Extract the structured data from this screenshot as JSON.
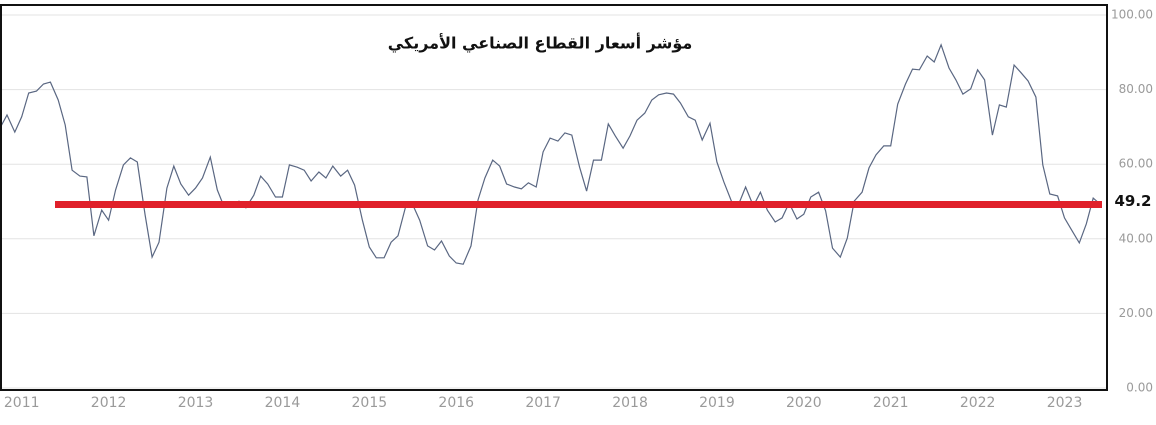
{
  "chart_data": {
    "type": "line",
    "title": "مؤشر أسعار القطاع الصناعي الأمريكي",
    "x": [
      2010.75,
      2010.83,
      2010.92,
      2011,
      2011.08,
      2011.17,
      2011.25,
      2011.33,
      2011.42,
      2011.5,
      2011.58,
      2011.67,
      2011.75,
      2011.83,
      2011.92,
      2012,
      2012.08,
      2012.17,
      2012.25,
      2012.33,
      2012.42,
      2012.5,
      2012.58,
      2012.67,
      2012.75,
      2012.83,
      2012.92,
      2013,
      2013.08,
      2013.17,
      2013.25,
      2013.33,
      2013.42,
      2013.5,
      2013.58,
      2013.67,
      2013.75,
      2013.83,
      2013.92,
      2014,
      2014.08,
      2014.17,
      2014.25,
      2014.33,
      2014.42,
      2014.5,
      2014.58,
      2014.67,
      2014.75,
      2014.83,
      2014.92,
      2015,
      2015.08,
      2015.17,
      2015.25,
      2015.33,
      2015.42,
      2015.5,
      2015.58,
      2015.67,
      2015.75,
      2015.83,
      2015.92,
      2016,
      2016.08,
      2016.17,
      2016.25,
      2016.33,
      2016.42,
      2016.5,
      2016.58,
      2016.67,
      2016.75,
      2016.83,
      2016.92,
      2017,
      2017.08,
      2017.17,
      2017.25,
      2017.33,
      2017.42,
      2017.5,
      2017.58,
      2017.67,
      2017.75,
      2017.83,
      2017.92,
      2018,
      2018.08,
      2018.17,
      2018.25,
      2018.33,
      2018.42,
      2018.5,
      2018.58,
      2018.67,
      2018.75,
      2018.83,
      2018.92,
      2019,
      2019.08,
      2019.17,
      2019.25,
      2019.33,
      2019.42,
      2019.5,
      2019.58,
      2019.67,
      2019.75,
      2019.83,
      2019.92,
      2020,
      2020.08,
      2020.17,
      2020.25,
      2020.33,
      2020.42,
      2020.5,
      2020.58,
      2020.67,
      2020.75,
      2020.83,
      2020.92,
      2021,
      2021.08,
      2021.17,
      2021.25,
      2021.33,
      2021.42,
      2021.5,
      2021.58,
      2021.67,
      2021.75,
      2021.83,
      2021.92,
      2022,
      2022.08,
      2022.17,
      2022.25,
      2022.33,
      2022.42,
      2022.5,
      2022.58,
      2022.67,
      2022.75,
      2022.83,
      2022.92,
      2023,
      2023.08,
      2023.17,
      2023.25,
      2023.33,
      2023.42
    ],
    "series": [
      {
        "color": "#5a6782",
        "values": [
          69.7,
          73.2,
          68.6,
          72.7,
          79.1,
          79.6,
          81.5,
          82.0,
          77.2,
          70.5,
          58.4,
          56.8,
          56.6,
          40.8,
          47.7,
          45.0,
          53.1,
          59.8,
          61.7,
          60.6,
          46.4,
          35.1,
          39.1,
          53.6,
          59.5,
          54.7,
          51.7,
          53.6,
          56.3,
          61.9,
          53.1,
          48.5,
          48.8,
          50.1,
          48.3,
          51.7,
          56.8,
          54.7,
          51.2,
          51.2,
          59.8,
          59.2,
          58.4,
          55.5,
          57.9,
          56.3,
          59.5,
          56.8,
          58.4,
          54.4,
          45.0,
          37.8,
          34.9,
          34.9,
          39.1,
          40.8,
          48.8,
          49.1,
          45.0,
          38.1,
          37.0,
          39.4,
          35.4,
          33.5,
          33.2,
          38.1,
          50.4,
          56.3,
          61.1,
          59.5,
          54.7,
          53.9,
          53.4,
          55.0,
          53.9,
          63.3,
          67.0,
          66.2,
          68.4,
          67.8,
          59.2,
          52.8,
          61.1,
          61.1,
          70.8,
          67.6,
          64.3,
          67.6,
          71.8,
          73.7,
          77.2,
          78.6,
          79.1,
          78.8,
          76.4,
          72.7,
          71.8,
          66.5,
          71.0,
          60.6,
          55.2,
          49.9,
          49.3,
          53.9,
          48.8,
          52.5,
          47.7,
          44.5,
          45.6,
          49.6,
          45.3,
          46.6,
          51.2,
          52.5,
          47.5,
          37.5,
          35.1,
          40.2,
          50.1,
          52.5,
          59.0,
          62.5,
          64.9,
          64.9,
          76.1,
          81.5,
          85.5,
          85.3,
          89.0,
          87.4,
          92.0,
          85.8,
          82.6,
          78.8,
          80.2,
          85.3,
          82.6,
          67.8,
          75.9,
          75.3,
          86.6,
          84.5,
          82.3,
          78.0,
          59.8,
          52.0,
          51.5,
          45.6,
          42.4,
          38.9,
          44.0,
          50.9,
          49.1
        ]
      }
    ],
    "xlim": [
      2010.75,
      2023.5
    ],
    "xticks": [
      2011,
      2012,
      2013,
      2014,
      2015,
      2016,
      2017,
      2018,
      2019,
      2020,
      2021,
      2022,
      2023
    ],
    "ylim": [
      0,
      100
    ],
    "yticks": [
      {
        "value": 0,
        "label": "0.00"
      },
      {
        "value": 20,
        "label": "20.00"
      },
      {
        "value": 40,
        "label": "40.00"
      },
      {
        "value": 60,
        "label": "60.00"
      },
      {
        "value": 80,
        "label": "80.00"
      },
      {
        "value": 100,
        "label": "100.00"
      }
    ],
    "grid": true,
    "reference_line": {
      "value": 49.2,
      "color": "#e0202a"
    }
  }
}
